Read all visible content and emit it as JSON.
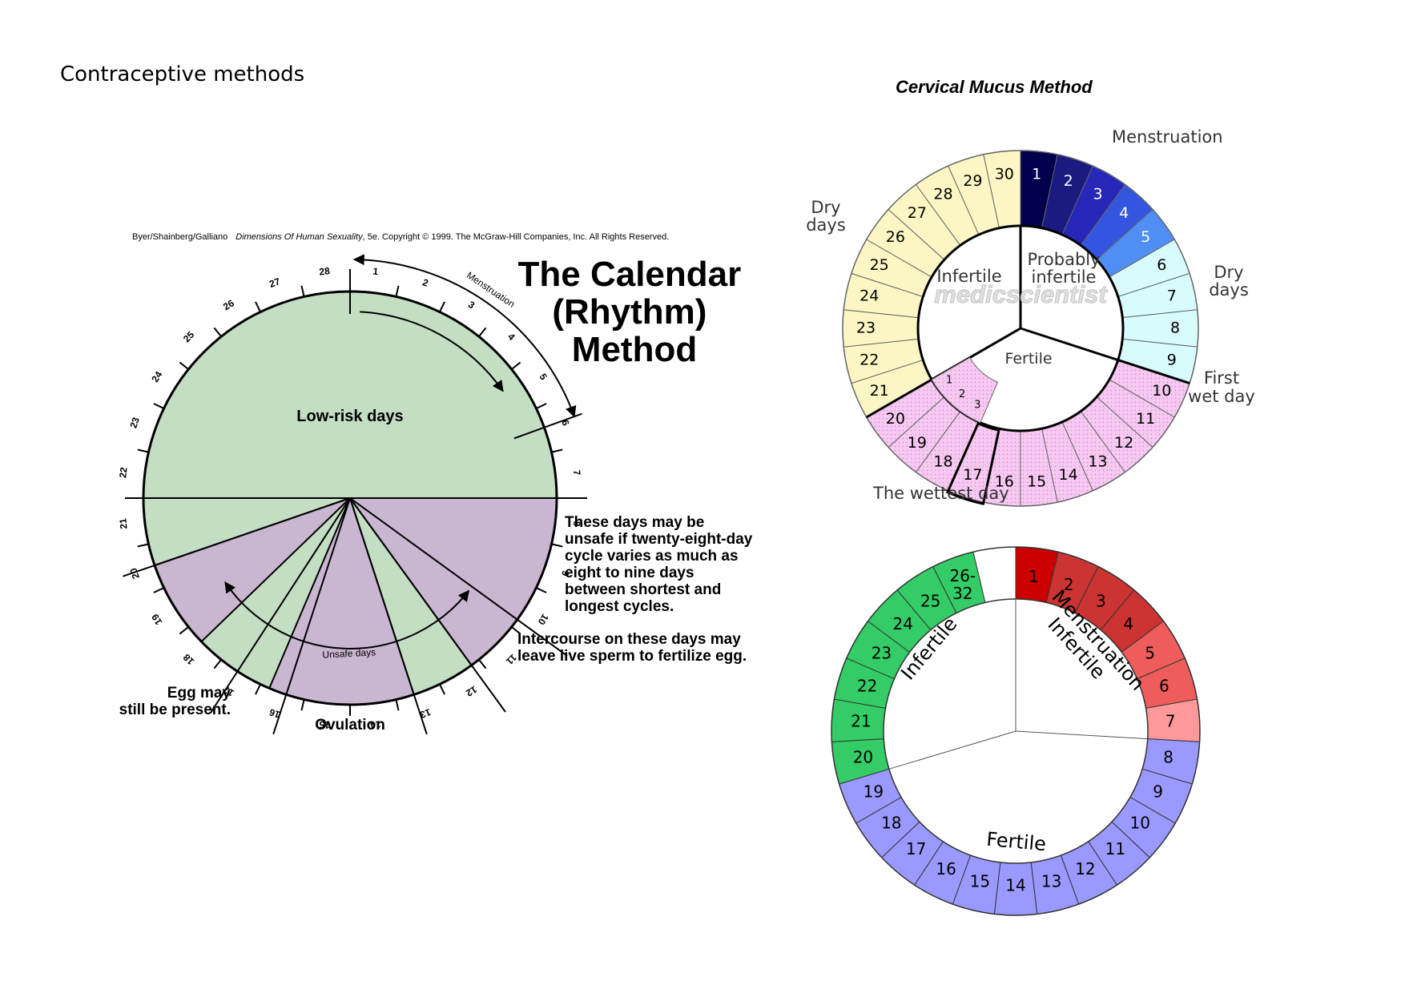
{
  "page": {
    "title": "Contraceptive methods"
  },
  "calendar": {
    "credit_authors": "Byer/Shainberg/Galliano",
    "credit_book": "Dimensions Of Human Sexuality",
    "credit_rest": ", 5e. Copyright © 1999. The McGraw-Hill Companies, Inc. All Rights Reserved.",
    "title_lines": [
      "The Calendar",
      "(Rhythm)",
      "Method"
    ],
    "days": [
      "1",
      "2",
      "3",
      "4",
      "5",
      "6",
      "7",
      "8",
      "9",
      "10",
      "11",
      "12",
      "13",
      "14",
      "15",
      "16",
      "17",
      "18",
      "19",
      "20",
      "21",
      "22",
      "23",
      "24",
      "25",
      "26",
      "27",
      "28"
    ],
    "menstruation_label": "Menstruation",
    "low_risk_label": "Low-risk days",
    "unsafe_label": "Unsafe days",
    "note_unsafe": [
      "These days may be",
      "unsafe if twenty-eight-day",
      "cycle varies as much as",
      "eight to nine days",
      "between shortest and",
      "longest cycles."
    ],
    "note_sperm": [
      "Intercourse on these days may",
      "leave live sperm to fertilize egg."
    ],
    "egg_label": [
      "Egg may",
      "still be present."
    ],
    "ovulation_label": "Ovulation",
    "colors": {
      "low_risk": "#c4dec4",
      "unsafe": "#c9b6d1"
    }
  },
  "cervical": {
    "title": "Cervical Mucus Method",
    "days": [
      "1",
      "2",
      "3",
      "4",
      "5",
      "6",
      "7",
      "8",
      "9",
      "10",
      "11",
      "12",
      "13",
      "14",
      "15",
      "16",
      "17",
      "18",
      "19",
      "20",
      "21",
      "22",
      "23",
      "24",
      "25",
      "26",
      "27",
      "28",
      "29",
      "30"
    ],
    "inner_days": [
      "1",
      "2",
      "3"
    ],
    "labels": {
      "menstruation": "Menstruation",
      "dry_days_left": [
        "Dry",
        "days"
      ],
      "dry_days_right": [
        "Dry",
        "days"
      ],
      "first_wet_day": [
        "First",
        "wet day"
      ],
      "wettest_day": "The wettest day",
      "infertile": "Infertile",
      "probably_infertile": [
        "Probably",
        "infertile"
      ],
      "fertile": "Fertile",
      "watermark": "medicscientist"
    },
    "colors": {
      "menstruation": [
        "#00004d",
        "#1a1a80",
        "#2626b8",
        "#3355e0",
        "#4f8ef5"
      ],
      "dry_right": "#d8fbfb",
      "fertile": "#f7c8f2",
      "dry_left": "#fbf6c4"
    }
  },
  "wheel": {
    "days": [
      "1",
      "2",
      "3",
      "4",
      "5",
      "6",
      "7",
      "8",
      "9",
      "10",
      "11",
      "12",
      "13",
      "14",
      "15",
      "16",
      "17",
      "18",
      "19",
      "20",
      "21",
      "22",
      "23",
      "24",
      "25",
      "26-\n32"
    ],
    "labels": {
      "menstruation": "Menstruation",
      "infertile_right": "Infertile",
      "infertile_left": "Infertile",
      "fertile": "Fertile"
    },
    "colors": {
      "menstruation_dark": "#cc0000",
      "menstruation_mid": "#cc3333",
      "menstruation_light": "#ee5c5c",
      "menstruation_pale": "#ff9999",
      "fertile": "#9999ff",
      "infertile": "#33cc66"
    }
  }
}
